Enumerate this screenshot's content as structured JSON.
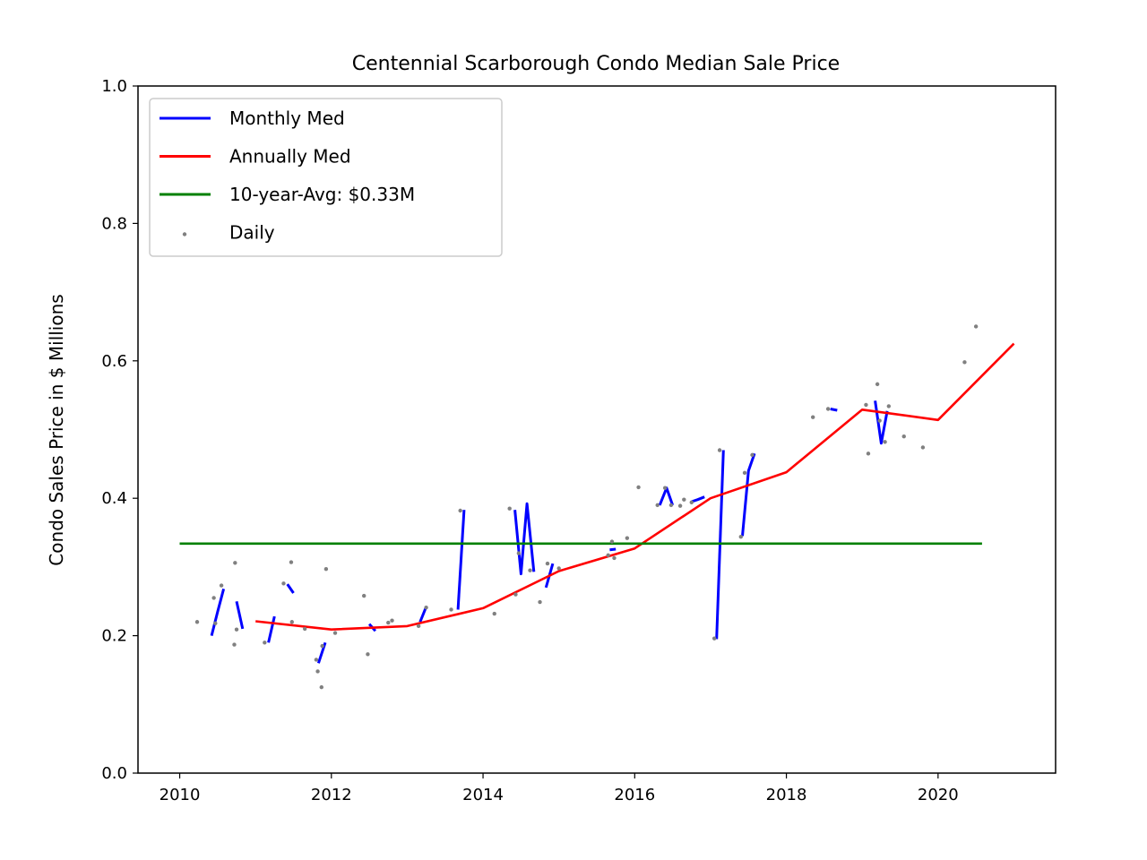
{
  "chart_data": {
    "type": "line",
    "title": "Centennial Scarborough Condo Median Sale Price",
    "xlabel": "",
    "ylabel": "Condo Sales Price in $ Millions",
    "xlim": [
      2009.45,
      2021.55
    ],
    "ylim": [
      0.0,
      1.0
    ],
    "xticks": [
      2010,
      2012,
      2014,
      2016,
      2018,
      2020
    ],
    "xtick_labels": [
      "2010",
      "2012",
      "2014",
      "2016",
      "2018",
      "2020"
    ],
    "yticks": [
      0.0,
      0.2,
      0.4,
      0.6,
      0.8,
      1.0
    ],
    "ytick_labels": [
      "0.0",
      "0.2",
      "0.4",
      "0.6",
      "0.8",
      "1.0"
    ],
    "grid": false,
    "legend": {
      "placement": "top-left",
      "entries": [
        {
          "label": "Monthly Med",
          "color": "#0000ff",
          "style": "line"
        },
        {
          "label": "Annually Med",
          "color": "#ff0000",
          "style": "line"
        },
        {
          "label": "10-year-Avg: $0.33M",
          "color": "#008000",
          "style": "line"
        },
        {
          "label": "Daily",
          "color": "#808080",
          "style": "dot"
        }
      ]
    },
    "series": [
      {
        "name": "Monthly Med",
        "color": "#0000ff",
        "segments": [
          [
            [
              2010.42,
              0.2
            ],
            [
              2010.5,
              0.235
            ],
            [
              2010.58,
              0.268
            ]
          ],
          [
            [
              2010.75,
              0.25
            ],
            [
              2010.83,
              0.21
            ]
          ],
          [
            [
              2011.17,
              0.19
            ],
            [
              2011.25,
              0.228
            ]
          ],
          [
            [
              2011.42,
              0.275
            ],
            [
              2011.5,
              0.262
            ]
          ],
          [
            [
              2011.83,
              0.16
            ],
            [
              2011.92,
              0.19
            ]
          ],
          [
            [
              2012.5,
              0.217
            ],
            [
              2012.58,
              0.207
            ]
          ],
          [
            [
              2013.17,
              0.22
            ],
            [
              2013.25,
              0.242
            ]
          ],
          [
            [
              2013.67,
              0.238
            ],
            [
              2013.75,
              0.383
            ]
          ],
          [
            [
              2014.42,
              0.383
            ],
            [
              2014.5,
              0.29
            ],
            [
              2014.58,
              0.392
            ],
            [
              2014.67,
              0.293
            ]
          ],
          [
            [
              2014.83,
              0.27
            ],
            [
              2014.92,
              0.305
            ]
          ],
          [
            [
              2015.67,
              0.325
            ],
            [
              2015.75,
              0.326
            ]
          ],
          [
            [
              2016.33,
              0.39
            ],
            [
              2016.42,
              0.415
            ],
            [
              2016.5,
              0.39
            ]
          ],
          [
            [
              2016.75,
              0.395
            ],
            [
              2016.83,
              0.398
            ],
            [
              2016.92,
              0.402
            ]
          ],
          [
            [
              2017.08,
              0.195
            ],
            [
              2017.17,
              0.47
            ]
          ],
          [
            [
              2017.42,
              0.345
            ],
            [
              2017.5,
              0.44
            ],
            [
              2017.58,
              0.465
            ]
          ],
          [
            [
              2018.58,
              0.53
            ],
            [
              2018.67,
              0.528
            ]
          ],
          [
            [
              2019.17,
              0.542
            ],
            [
              2019.25,
              0.48
            ],
            [
              2019.33,
              0.527
            ]
          ]
        ]
      },
      {
        "name": "Annually Med",
        "color": "#ff0000",
        "x": [
          2011.0,
          2012.0,
          2013.0,
          2014.0,
          2015.0,
          2016.0,
          2017.0,
          2018.0,
          2019.0,
          2020.0,
          2021.0
        ],
        "y": [
          0.221,
          0.209,
          0.214,
          0.24,
          0.294,
          0.327,
          0.4,
          0.438,
          0.529,
          0.514,
          0.625
        ]
      },
      {
        "name": "10-year-Avg: $0.33M",
        "color": "#008000",
        "x": [
          2010.0,
          2020.58
        ],
        "y": [
          0.334,
          0.334
        ]
      },
      {
        "name": "Daily",
        "color": "#808080",
        "style": "scatter",
        "points": [
          [
            2010.23,
            0.22
          ],
          [
            2010.45,
            0.255
          ],
          [
            2010.47,
            0.218
          ],
          [
            2010.55,
            0.273
          ],
          [
            2010.72,
            0.187
          ],
          [
            2010.73,
            0.306
          ],
          [
            2010.75,
            0.209
          ],
          [
            2011.12,
            0.19
          ],
          [
            2011.37,
            0.276
          ],
          [
            2011.47,
            0.307
          ],
          [
            2011.48,
            0.22
          ],
          [
            2011.65,
            0.21
          ],
          [
            2011.8,
            0.165
          ],
          [
            2011.82,
            0.148
          ],
          [
            2011.87,
            0.125
          ],
          [
            2011.88,
            0.185
          ],
          [
            2011.93,
            0.297
          ],
          [
            2012.05,
            0.204
          ],
          [
            2012.43,
            0.258
          ],
          [
            2012.48,
            0.173
          ],
          [
            2012.75,
            0.219
          ],
          [
            2012.8,
            0.222
          ],
          [
            2013.15,
            0.214
          ],
          [
            2013.25,
            0.241
          ],
          [
            2013.58,
            0.238
          ],
          [
            2013.7,
            0.382
          ],
          [
            2014.15,
            0.232
          ],
          [
            2014.35,
            0.385
          ],
          [
            2014.43,
            0.26
          ],
          [
            2014.47,
            0.32
          ],
          [
            2014.62,
            0.295
          ],
          [
            2014.75,
            0.249
          ],
          [
            2014.85,
            0.305
          ],
          [
            2015.0,
            0.298
          ],
          [
            2015.65,
            0.317
          ],
          [
            2015.7,
            0.337
          ],
          [
            2015.73,
            0.313
          ],
          [
            2015.9,
            0.342
          ],
          [
            2016.05,
            0.416
          ],
          [
            2016.3,
            0.39
          ],
          [
            2016.4,
            0.415
          ],
          [
            2016.48,
            0.39
          ],
          [
            2016.6,
            0.389
          ],
          [
            2016.65,
            0.398
          ],
          [
            2016.75,
            0.394
          ],
          [
            2017.05,
            0.196
          ],
          [
            2017.12,
            0.47
          ],
          [
            2017.4,
            0.344
          ],
          [
            2017.45,
            0.437
          ],
          [
            2017.55,
            0.463
          ],
          [
            2018.35,
            0.518
          ],
          [
            2018.55,
            0.53
          ],
          [
            2019.05,
            0.536
          ],
          [
            2019.08,
            0.465
          ],
          [
            2019.2,
            0.566
          ],
          [
            2019.23,
            0.513
          ],
          [
            2019.3,
            0.482
          ],
          [
            2019.35,
            0.534
          ],
          [
            2019.55,
            0.49
          ],
          [
            2019.8,
            0.474
          ],
          [
            2020.35,
            0.598
          ],
          [
            2020.5,
            0.65
          ]
        ]
      }
    ]
  }
}
